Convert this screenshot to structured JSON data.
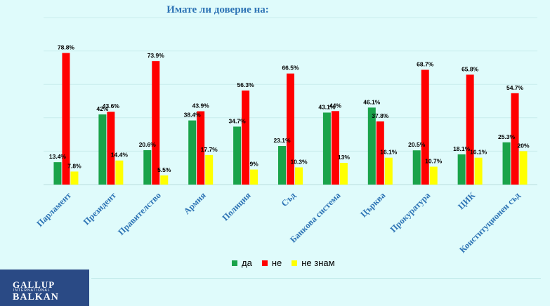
{
  "title": "Имате  ли доверие на:",
  "legend": [
    {
      "label": "да",
      "color": "#1aa34a"
    },
    {
      "label": "не",
      "color": "#ff0000"
    },
    {
      "label": "не знам",
      "color": "#ffff00"
    }
  ],
  "logo": {
    "line1": "GALLUP",
    "line2": "INTERNATIONAL",
    "line3": "BALKAN"
  },
  "chart_data": {
    "type": "bar",
    "title": "Имате  ли доверие на:",
    "ylim": [
      0,
      100
    ],
    "grid": true,
    "legend_position": "bottom",
    "categories": [
      "Парламент",
      "Президент",
      "Правителство",
      "Армия",
      "Полиция",
      "Съд",
      "Банкова система",
      "Църква",
      "Прокуратура",
      "ЦИК",
      "Конституционен съд"
    ],
    "series": [
      {
        "name": "да",
        "color": "#1aa34a",
        "values": [
          13.4,
          42,
          20.6,
          38.4,
          34.7,
          23.1,
          43.1,
          46.1,
          20.5,
          18.1,
          25.3
        ],
        "labels": [
          "13.4%",
          "42%",
          "20.6%",
          "38.4%",
          "34.7%",
          "23.1%",
          "43.1%",
          "46.1%",
          "20.5%",
          "18.1%",
          "25.3%"
        ]
      },
      {
        "name": "не",
        "color": "#ff0000",
        "values": [
          78.8,
          43.6,
          73.9,
          43.9,
          56.3,
          66.5,
          44,
          37.8,
          68.7,
          65.8,
          54.7
        ],
        "labels": [
          "78.8%",
          "43.6%",
          "73.9%",
          "43.9%",
          "56.3%",
          "66.5%",
          "44%",
          "37.8%",
          "68.7%",
          "65.8%",
          "54.7%"
        ]
      },
      {
        "name": "не знам",
        "color": "#ffff00",
        "values": [
          7.8,
          14.4,
          5.5,
          17.7,
          9,
          10.3,
          13,
          16.1,
          10.7,
          16.1,
          20
        ],
        "labels": [
          "7.8%",
          "14.4%",
          "5.5%",
          "17.7%",
          "9%",
          "10.3%",
          "13%",
          "16.1%",
          "10.7%",
          "16.1%",
          "20%"
        ]
      }
    ]
  }
}
